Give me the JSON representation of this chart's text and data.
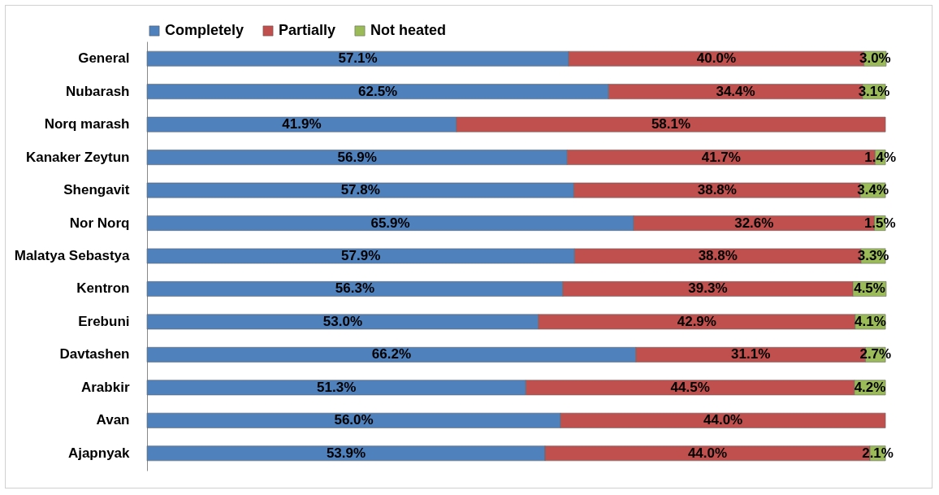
{
  "chart_data": {
    "type": "bar",
    "orientation": "horizontal",
    "stacked": true,
    "legend": "top",
    "grid": false,
    "categories": [
      "General",
      "Nubarash",
      "Norq marash",
      "Kanaker Zeytun",
      "Shengavit",
      "Nor Norq",
      "Malatya Sebastya",
      "Kentron",
      "Erebuni",
      "Davtashen",
      "Arabkir",
      "Avan",
      "Ajapnyak"
    ],
    "series": [
      {
        "name": "Completely",
        "color": "#4f81bd",
        "values": [
          57.1,
          62.5,
          41.9,
          56.9,
          57.8,
          65.9,
          57.9,
          56.3,
          53.0,
          66.2,
          51.3,
          56.0,
          53.9
        ],
        "value_labels": [
          "57.1%",
          "62.5%",
          "41.9%",
          "56.9%",
          "57.8%",
          "65.9%",
          "57.9%",
          "56.3%",
          "53.0%",
          "66.2%",
          "51.3%",
          "56.0%",
          "53.9%"
        ]
      },
      {
        "name": "Partially",
        "color": "#c0504d",
        "values": [
          40.0,
          34.4,
          58.1,
          41.7,
          38.8,
          32.6,
          38.8,
          39.3,
          42.9,
          31.1,
          44.5,
          44.0,
          44.0
        ],
        "value_labels": [
          "40.0%",
          "34.4%",
          "58.1%",
          "41.7%",
          "38.8%",
          "32.6%",
          "38.8%",
          "39.3%",
          "42.9%",
          "31.1%",
          "44.5%",
          "44.0%",
          "44.0%"
        ]
      },
      {
        "name": "Not heated",
        "color": "#9bbb59",
        "values": [
          3.0,
          3.1,
          null,
          1.4,
          3.4,
          1.5,
          3.3,
          4.5,
          4.1,
          2.7,
          4.2,
          null,
          2.1
        ],
        "value_labels": [
          "3.0%",
          "3.1%",
          null,
          "1.4%",
          "3.4%",
          "1.5%",
          "3.3%",
          "4.5%",
          "4.1%",
          "2.7%",
          "4.2%",
          null,
          "2.1%"
        ]
      }
    ]
  }
}
